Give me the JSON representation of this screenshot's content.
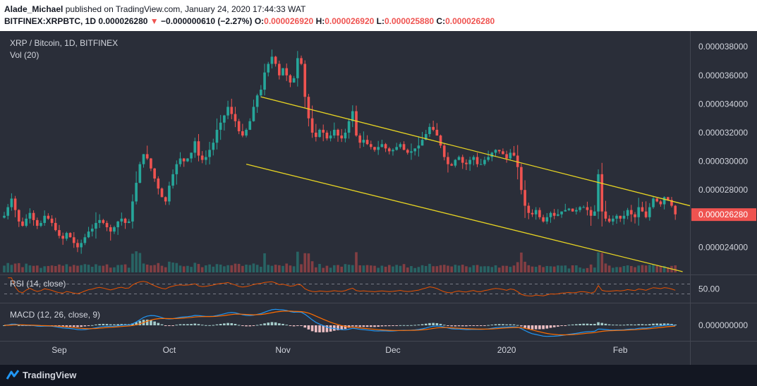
{
  "header": {
    "author": "Alade_Michael",
    "published_text": "published on TradingView.com, January 24, 2020 17:44:33 WAT",
    "ticker": "BITFINEX:XRPBTC, 1D",
    "last": "0.000026280",
    "change": "−0.000000610 (−2.27%)",
    "o_label": "O:",
    "o": "0.000026920",
    "h_label": "H:",
    "h": "0.000026920",
    "l_label": "L:",
    "l": "0.000025880",
    "c_label": "C:",
    "c": "0.000026280"
  },
  "legend": {
    "symbol": "XRP / Bitcoin, 1D, BITFINEX",
    "volume": "Vol (20)",
    "rsi": "RSI (14, close)",
    "macd": "MACD (12, 26, close, 9)"
  },
  "footer": {
    "brand": "TradingView"
  },
  "colors": {
    "up": "#26a69a",
    "down": "#ef5350",
    "channel": "#e6d323",
    "rsi_line": "#e65100",
    "macd_line": "#2196f3",
    "signal_line": "#ff6d00",
    "price_badge": "#ef5350"
  },
  "chart_data": [
    {
      "type": "candlestick",
      "title": "XRP / Bitcoin, 1D, BITFINEX",
      "y_ticks": [
        "0.000038000",
        "0.000036000",
        "0.000034000",
        "0.000032000",
        "0.000030000",
        "0.000028000",
        "0.000024000"
      ],
      "y_tick_values": [
        3.8e-05,
        3.6e-05,
        3.4e-05,
        3.2e-05,
        3e-05,
        2.8e-05,
        2.4e-05
      ],
      "ylim": [
        2.22e-05,
        3.85e-05
      ],
      "x_ticks": [
        "Sep",
        "Oct",
        "Nov",
        "Dec",
        "2020",
        "Feb"
      ],
      "x_tick_dates": [
        "2019-09-01",
        "2019-10-01",
        "2019-11-01",
        "2019-12-01",
        "2020-01-01",
        "2020-02-01"
      ],
      "xlim": [
        "2019-08-17",
        "2020-02-20"
      ],
      "last_price_label": "0.000026280",
      "last_price": 2.628e-05,
      "close_series": {
        "start_date": "2019-08-17",
        "closes": [
          2.62e-05,
          2.68e-05,
          2.74e-05,
          2.66e-05,
          2.58e-05,
          2.55e-05,
          2.6e-05,
          2.64e-05,
          2.59e-05,
          2.55e-05,
          2.57e-05,
          2.62e-05,
          2.6e-05,
          2.57e-05,
          2.52e-05,
          2.48e-05,
          2.46e-05,
          2.5e-05,
          2.47e-05,
          2.43e-05,
          2.4e-05,
          2.43e-05,
          2.47e-05,
          2.51e-05,
          2.53e-05,
          2.57e-05,
          2.59e-05,
          2.57e-05,
          2.54e-05,
          2.51e-05,
          2.54e-05,
          2.58e-05,
          2.6e-05,
          2.57e-05,
          2.58e-05,
          2.72e-05,
          2.85e-05,
          2.98e-05,
          3.05e-05,
          3.02e-05,
          2.95e-05,
          2.88e-05,
          2.81e-05,
          2.75e-05,
          2.72e-05,
          2.83e-05,
          2.91e-05,
          2.98e-05,
          3.02e-05,
          3e-05,
          3.02e-05,
          3.06e-05,
          3.14e-05,
          3.04e-05,
          3.01e-05,
          3.03e-05,
          3.08e-05,
          3.13e-05,
          3.22e-05,
          3.27e-05,
          3.32e-05,
          3.38e-05,
          3.33e-05,
          3.28e-05,
          3.21e-05,
          3.18e-05,
          3.22e-05,
          3.28e-05,
          3.38e-05,
          3.46e-05,
          3.5e-05,
          3.62e-05,
          3.68e-05,
          3.73e-05,
          3.68e-05,
          3.6e-05,
          3.65e-05,
          3.6e-05,
          3.55e-05,
          3.58e-05,
          3.72e-05,
          3.68e-05,
          3.45e-05,
          3.3e-05,
          3.2e-05,
          3.17e-05,
          3.22e-05,
          3.2e-05,
          3.16e-05,
          3.18e-05,
          3.22e-05,
          3.18e-05,
          3.16e-05,
          3.2e-05,
          3.28e-05,
          3.35e-05,
          3.18e-05,
          3.13e-05,
          3.15e-05,
          3.12e-05,
          3.1e-05,
          3.08e-05,
          3.1e-05,
          3.12e-05,
          3.09e-05,
          3.07e-05,
          3.08e-05,
          3.1e-05,
          3.12e-05,
          3.08e-05,
          3.06e-05,
          3.07e-05,
          3.09e-05,
          3.11e-05,
          3.15e-05,
          3.19e-05,
          3.24e-05,
          3.22e-05,
          3.18e-05,
          3.11e-05,
          3.03e-05,
          2.98e-05,
          2.97e-05,
          3.01e-05,
          3.03e-05,
          2.99e-05,
          2.98e-05,
          3.01e-05,
          3.03e-05,
          2.98e-05,
          2.98e-05,
          3.01e-05,
          3.03e-05,
          3.06e-05,
          3.08e-05,
          3.07e-05,
          3.05e-05,
          3.02e-05,
          3.06e-05,
          3.04e-05,
          2.96e-05,
          2.8e-05,
          2.69e-05,
          2.64e-05,
          2.63e-05,
          2.66e-05,
          2.61e-05,
          2.58e-05,
          2.61e-05,
          2.64e-05,
          2.62e-05,
          2.63e-05,
          2.65e-05,
          2.66e-05,
          2.67e-05,
          2.65e-05,
          2.66e-05,
          2.68e-05,
          2.68e-05,
          2.66e-05,
          2.62e-05,
          2.65e-05,
          2.91e-05,
          2.65e-05,
          2.6e-05,
          2.58e-05,
          2.6e-05,
          2.62e-05,
          2.6e-05,
          2.62e-05,
          2.66e-05,
          2.63e-05,
          2.61e-05,
          2.68e-05,
          2.65e-05,
          2.61e-05,
          2.68e-05,
          2.74e-05,
          2.72e-05,
          2.7e-05,
          2.75e-05,
          2.73e-05,
          2.69e-05,
          2.63e-05
        ]
      },
      "channel": {
        "upper": [
          [
            "2019-10-26",
            3.45e-05
          ],
          [
            "2020-02-20",
            2.69e-05
          ]
        ],
        "lower": [
          [
            "2019-10-22",
            2.98e-05
          ],
          [
            "2020-02-18",
            2.23e-05
          ]
        ]
      }
    },
    {
      "type": "bar",
      "title": "Vol (20)",
      "note": "volume histogram, values in relative units",
      "series": [
        {
          "name": "Vol (20)",
          "derived_from_close_series": true
        }
      ]
    },
    {
      "type": "line",
      "title": "RSI (14, close)",
      "y_ticks": [
        "50.00"
      ],
      "y_tick_values": [
        50
      ],
      "ylim": [
        0,
        100
      ],
      "bands": [
        30,
        70
      ]
    },
    {
      "type": "line",
      "title": "MACD (12, 26, close, 9)",
      "y_ticks": [
        "0.000000000"
      ],
      "y_tick_values": [
        0
      ],
      "series": [
        {
          "name": "MACD"
        },
        {
          "name": "Signal"
        },
        {
          "name": "Histogram"
        }
      ]
    }
  ]
}
